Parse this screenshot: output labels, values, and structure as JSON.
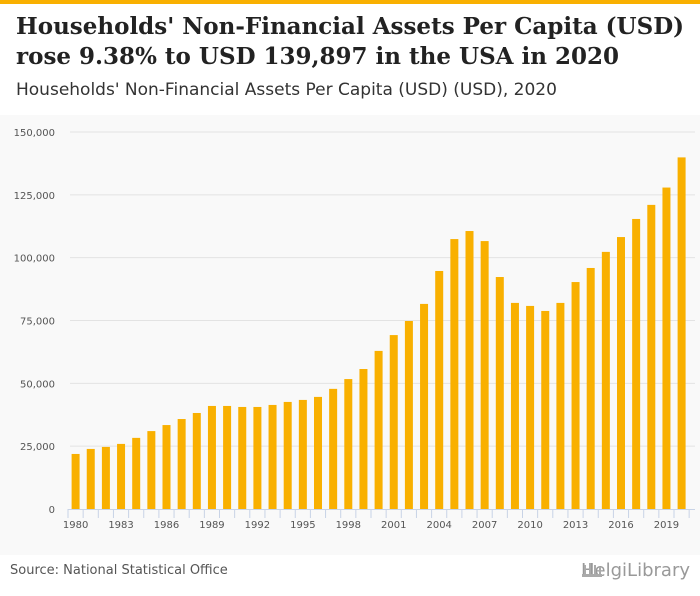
{
  "header": {
    "title": "Households' Non-Financial Assets Per Capita (USD) rose 9.38% to USD 139,897 in the USA in 2020",
    "subtitle": "Households' Non-Financial Assets Per Capita (USD) (USD), 2020"
  },
  "footer": {
    "source": "Source: National Statistical Office",
    "logo": "HelgiLibrary"
  },
  "colors": {
    "bar": "#f9b000",
    "accent": "#f9b000"
  },
  "chart_data": {
    "type": "bar",
    "title": "Households' Non-Financial Assets Per Capita (USD)",
    "xlabel": "",
    "ylabel": "",
    "ylim": [
      0,
      150000
    ],
    "yticks": [
      "0",
      "25,000",
      "50,000",
      "75,000",
      "100,000",
      "125,000",
      "150,000"
    ],
    "xtick_labels": [
      "1980",
      "1983",
      "1986",
      "1989",
      "1992",
      "1995",
      "1998",
      "2001",
      "2004",
      "2007",
      "2010",
      "2013",
      "2016",
      "2019"
    ],
    "grid": true,
    "categories": [
      1980,
      1981,
      1982,
      1983,
      1984,
      1985,
      1986,
      1987,
      1988,
      1989,
      1990,
      1991,
      1992,
      1993,
      1994,
      1995,
      1996,
      1997,
      1998,
      1999,
      2000,
      2001,
      2002,
      2003,
      2004,
      2005,
      2006,
      2007,
      2008,
      2009,
      2010,
      2011,
      2012,
      2013,
      2014,
      2015,
      2016,
      2017,
      2018,
      2019,
      2020
    ],
    "values": [
      21900,
      23900,
      24700,
      25900,
      28300,
      31000,
      33400,
      35800,
      38200,
      41000,
      41000,
      40600,
      40600,
      41400,
      42600,
      43400,
      44600,
      47800,
      51700,
      55700,
      62900,
      69200,
      74800,
      81600,
      94700,
      107400,
      110600,
      106600,
      92300,
      82000,
      80800,
      78800,
      82000,
      90300,
      95900,
      102300,
      108200,
      115400,
      121000,
      127900,
      139897
    ]
  }
}
